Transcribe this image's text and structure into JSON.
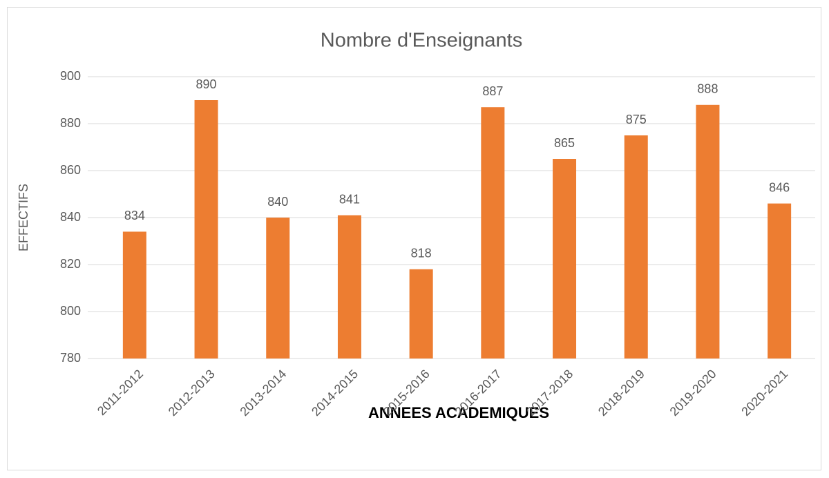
{
  "chart_data": {
    "type": "bar",
    "title": "Nombre d'Enseignants",
    "x_label": "ANNEES ACADEMIQUES",
    "y_label": "EFFECTIFS",
    "categories": [
      "2011-2012",
      "2012-2013",
      "2013-2014",
      "2014-2015",
      "2015-2016",
      "2016-2017",
      "2017-2018",
      "2018-2019",
      "2019-2020",
      "2020-2021"
    ],
    "values": [
      834,
      890,
      840,
      841,
      818,
      887,
      865,
      875,
      888,
      846
    ],
    "color": "#ed7d31",
    "ylim": [
      780,
      900
    ],
    "yticks": [
      780,
      800,
      820,
      840,
      860,
      880,
      900
    ],
    "grid": true
  }
}
